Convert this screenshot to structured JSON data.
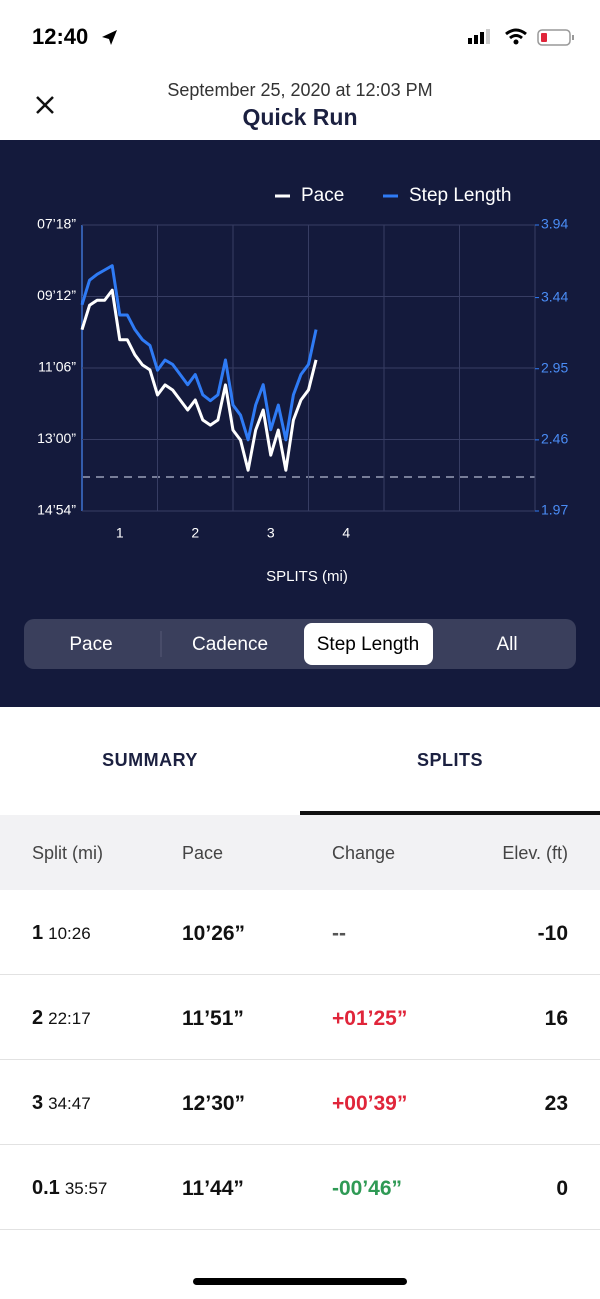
{
  "status_bar": {
    "time": "12:40"
  },
  "header": {
    "subtitle": "September 25, 2020 at 12:03 PM",
    "title": "Quick Run"
  },
  "chart_data": {
    "type": "line",
    "x_label": "SPLITS (mi)",
    "x": [
      0,
      0.1,
      0.2,
      0.3,
      0.4,
      0.5,
      0.6,
      0.7,
      0.8,
      0.9,
      1.0,
      1.1,
      1.2,
      1.3,
      1.4,
      1.5,
      1.6,
      1.7,
      1.8,
      1.9,
      2.0,
      2.1,
      2.2,
      2.3,
      2.4,
      2.5,
      2.6,
      2.7,
      2.8,
      2.9,
      3.0,
      3.1
    ],
    "xlim": [
      0,
      6
    ],
    "xgrid": [
      0,
      1,
      2,
      3,
      4,
      5,
      6
    ],
    "xticks": [
      {
        "value": 0.5,
        "label": "1"
      },
      {
        "value": 1.5,
        "label": "2"
      },
      {
        "value": 2.5,
        "label": "3"
      },
      {
        "value": 3.5,
        "label": "4"
      }
    ],
    "ylim": [
      894,
      438
    ],
    "yticks": [
      {
        "value": 438,
        "label": "07’18”"
      },
      {
        "value": 552,
        "label": "09’12”"
      },
      {
        "value": 666,
        "label": "11’06”"
      },
      {
        "value": 780,
        "label": "13’00”"
      },
      {
        "value": 894,
        "label": "14’54”"
      }
    ],
    "y2lim": [
      1.97,
      3.94
    ],
    "y2ticks": [
      3.94,
      3.44,
      2.95,
      2.46,
      1.97
    ],
    "grid": true,
    "legend": "top-right",
    "series": [
      {
        "name": "Pace",
        "color": "#ffffff",
        "values": [
          605,
          566,
          558,
          558,
          542,
          621,
          621,
          645,
          661,
          669,
          709,
          693,
          701,
          717,
          733,
          717,
          749,
          757,
          749,
          693,
          765,
          781,
          829,
          765,
          733,
          805,
          765,
          829,
          749,
          717,
          701,
          653
        ]
      },
      {
        "name": "Step Length",
        "color": "#2f7bf5",
        "axis": "y2",
        "values": [
          3.39,
          3.56,
          3.6,
          3.63,
          3.66,
          3.32,
          3.32,
          3.22,
          3.15,
          3.11,
          2.94,
          3.01,
          2.98,
          2.91,
          2.84,
          2.91,
          2.77,
          2.73,
          2.77,
          3.01,
          2.7,
          2.63,
          2.46,
          2.7,
          2.84,
          2.53,
          2.7,
          2.46,
          2.77,
          2.91,
          2.98,
          3.22
        ]
      }
    ]
  },
  "segments": {
    "items": [
      "Pace",
      "Cadence",
      "Step Length",
      "All"
    ],
    "selected": 2
  },
  "tabs": {
    "items": [
      "SUMMARY",
      "SPLITS"
    ],
    "selected": 1
  },
  "table": {
    "columns": [
      "Split (mi)",
      "Pace",
      "Change",
      "Elev. (ft)"
    ],
    "rows": [
      {
        "split": "1",
        "time": "10:26",
        "pace": "10’26”",
        "change": "--",
        "change_color": "#555555",
        "elev": "-10"
      },
      {
        "split": "2",
        "time": "22:17",
        "pace": "11’51”",
        "change": "+01’25”",
        "change_color": "#e0253a",
        "elev": "16"
      },
      {
        "split": "3",
        "time": "34:47",
        "pace": "12’30”",
        "change": "+00’39”",
        "change_color": "#e0253a",
        "elev": "23"
      },
      {
        "split": "0.1",
        "time": "35:57",
        "pace": "11’44”",
        "change": "-00’46”",
        "change_color": "#2f9a55",
        "elev": "0"
      }
    ]
  }
}
